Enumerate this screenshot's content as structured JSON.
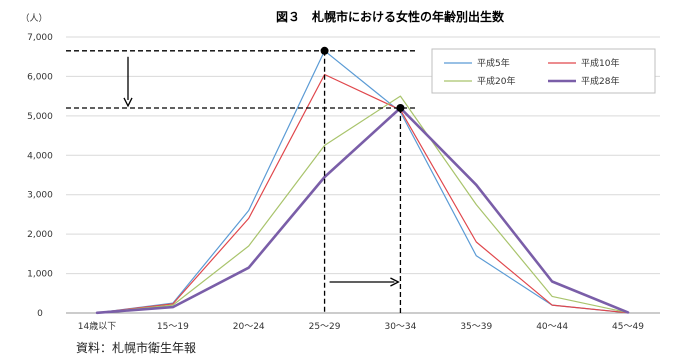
{
  "chart_data": {
    "type": "line",
    "title": "図３　札幌市における女性の年齢別出生数",
    "ylabel": "（人）",
    "xlabel": "",
    "categories": [
      "14歳以下",
      "15～19",
      "20～24",
      "25～29",
      "30～34",
      "35～39",
      "40～44",
      "45～49"
    ],
    "ylim": [
      0,
      7000
    ],
    "yticks": [
      0,
      1000,
      2000,
      3000,
      4000,
      5000,
      6000,
      7000
    ],
    "ytick_labels": [
      "0",
      "1,000",
      "2,000",
      "3,000",
      "4,000",
      "5,000",
      "6,000",
      "7,000"
    ],
    "grid": true,
    "legend_position": "top-right",
    "series": [
      {
        "name": "平成5年",
        "color": "#5b9bd5",
        "width": 1.2,
        "values": [
          5,
          250,
          2600,
          6650,
          5100,
          1450,
          200,
          5
        ]
      },
      {
        "name": "平成10年",
        "color": "#e0474c",
        "width": 1.2,
        "values": [
          5,
          230,
          2400,
          6050,
          5150,
          1800,
          200,
          5
        ]
      },
      {
        "name": "平成20年",
        "color": "#a9c46c",
        "width": 1.2,
        "values": [
          5,
          200,
          1700,
          4250,
          5500,
          2750,
          420,
          8
        ]
      },
      {
        "name": "平成28年",
        "color": "#7a5ea8",
        "width": 2.6,
        "values": [
          5,
          150,
          1150,
          3450,
          5200,
          3250,
          800,
          15
        ]
      }
    ],
    "markers": [
      {
        "category": "25～29",
        "value": 6650
      },
      {
        "category": "30～34",
        "value": 5200
      }
    ]
  },
  "source": "資料：札幌市衛生年報"
}
